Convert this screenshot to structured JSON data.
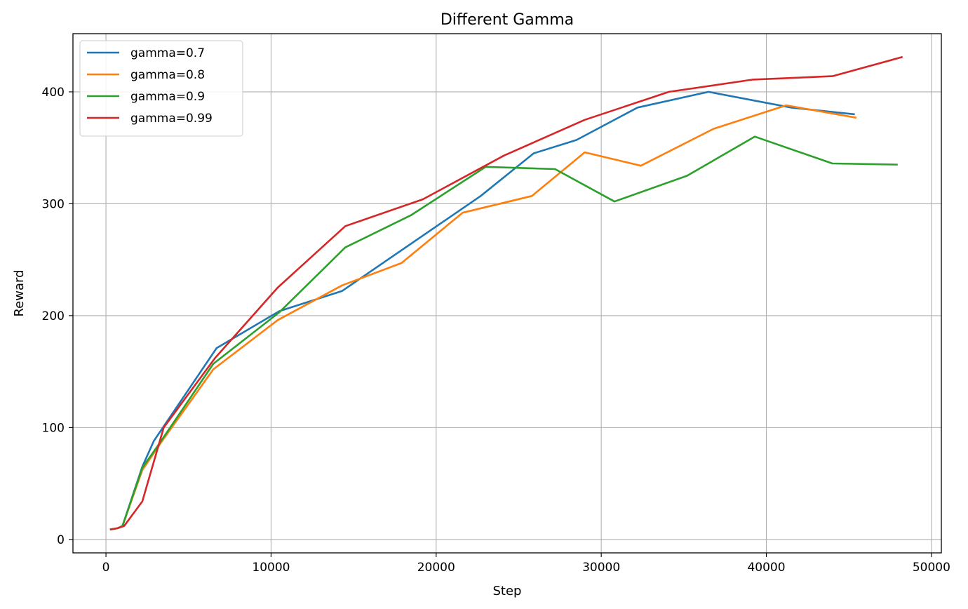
{
  "chart_data": {
    "type": "line",
    "title": "Different Gamma",
    "xlabel": "Step",
    "ylabel": "Reward",
    "xlim": [
      -2000,
      50600
    ],
    "ylim": [
      -12,
      452
    ],
    "xticks": [
      0,
      10000,
      20000,
      30000,
      40000,
      50000
    ],
    "yticks": [
      0,
      100,
      200,
      300,
      400
    ],
    "grid": true,
    "legend_position": "upper-left",
    "series": [
      {
        "name": "gamma=0.7",
        "color": "#1f77b4",
        "x": [
          300,
          700,
          1000,
          2200,
          2900,
          6700,
          10500,
          14300,
          22700,
          25900,
          28500,
          32200,
          36500,
          41500,
          45300
        ],
        "y": [
          9,
          10,
          12,
          65,
          88,
          171,
          204,
          222,
          307,
          345,
          357,
          386,
          400,
          386,
          380
        ]
      },
      {
        "name": "gamma=0.8",
        "color": "#ff7f0e",
        "x": [
          300,
          700,
          1000,
          2200,
          3400,
          6500,
          10400,
          14300,
          17900,
          21600,
          25800,
          29000,
          32400,
          36800,
          41200,
          45400
        ],
        "y": [
          9,
          10,
          12,
          62,
          88,
          152,
          196,
          227,
          247,
          292,
          307,
          346,
          334,
          367,
          388,
          377
        ]
      },
      {
        "name": "gamma=0.9",
        "color": "#2ca02c",
        "x": [
          300,
          700,
          1000,
          2200,
          3200,
          6500,
          10500,
          14500,
          18500,
          23000,
          27200,
          30800,
          35200,
          39300,
          44000,
          47900
        ],
        "y": [
          9,
          10,
          12,
          64,
          85,
          157,
          203,
          261,
          290,
          333,
          331,
          302,
          325,
          360,
          336,
          335
        ]
      },
      {
        "name": "gamma=0.99",
        "color": "#d62728",
        "x": [
          300,
          700,
          1100,
          2200,
          3500,
          6600,
          10400,
          14500,
          19200,
          24100,
          29000,
          34100,
          39200,
          44000,
          48200
        ],
        "y": [
          9,
          10,
          12,
          34,
          100,
          162,
          225,
          280,
          304,
          343,
          375,
          400,
          411,
          414,
          431
        ]
      }
    ]
  }
}
